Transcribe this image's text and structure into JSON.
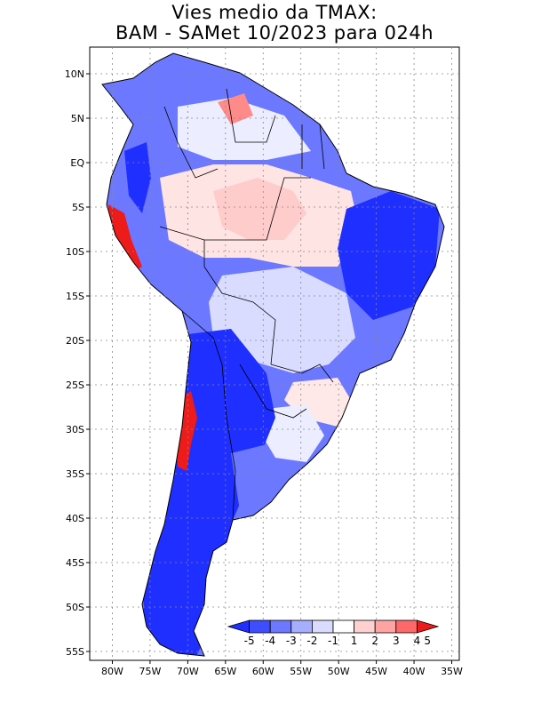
{
  "title": {
    "line1": "Vies medio da TMAX:",
    "line2": "BAM - SAMet 10/2023  para 024h"
  },
  "map": {
    "lat_labels": [
      "10N",
      "5N",
      "EQ",
      "5S",
      "10S",
      "15S",
      "20S",
      "25S",
      "30S",
      "35S",
      "40S",
      "45S",
      "50S",
      "55S"
    ],
    "lon_labels": [
      "80W",
      "75W",
      "70W",
      "65W",
      "60W",
      "55W",
      "50W",
      "45W",
      "40W",
      "35W"
    ],
    "lat_values": [
      10,
      5,
      0,
      -5,
      -10,
      -15,
      -20,
      -25,
      -30,
      -35,
      -40,
      -45,
      -50,
      -55
    ],
    "lon_values": [
      -80,
      -75,
      -70,
      -65,
      -60,
      -55,
      -50,
      -45,
      -40,
      -35
    ],
    "lat_range": [
      -56,
      13
    ],
    "lon_range": [
      -83,
      -34
    ],
    "gridlines": "dotted",
    "colors": {
      "blue_strong": "#1f2fff",
      "blue_mid": "#5b6cff",
      "blue_light": "#aab3ff",
      "blue_pale": "#d9dcff",
      "neutral": "#ffffff",
      "red_pale": "#ffd7d7",
      "red_light": "#ffa8a8",
      "red_mid": "#ff6c6c",
      "red_strong": "#ee1b1b"
    }
  },
  "colorbar": {
    "labels": [
      "-5",
      "-4",
      "-3",
      "-2",
      "-1",
      "1",
      "2",
      "3",
      "4",
      "5"
    ],
    "colors": [
      "#1f2fff",
      "#3e4dff",
      "#6b78ff",
      "#a6aeff",
      "#d9dcff",
      "#ffffff",
      "#ffd0d0",
      "#ffa3a3",
      "#ff6868",
      "#ee1b1b"
    ]
  }
}
